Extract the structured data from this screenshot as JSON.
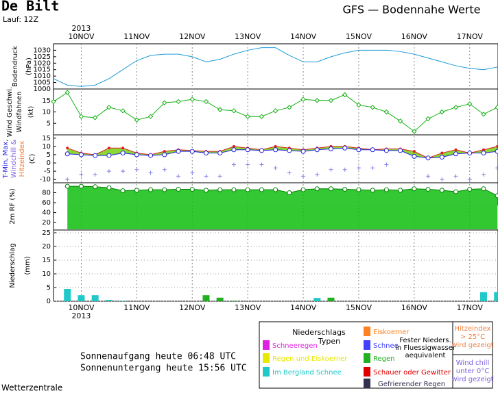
{
  "header": {
    "station": "De Bilt",
    "run": "Lauf: 12Z",
    "title": "GFS — Bodennahe Werte"
  },
  "footer": {
    "source": "Wetterzentrale",
    "sunrise": "Sonnenaufgang heute 06:48 UTC",
    "sunset": "Sonnenuntergang heute 15:56 UTC"
  },
  "legend": {
    "title": [
      "Niederschlags",
      "Typen"
    ],
    "items": [
      {
        "label": "Schneeregen",
        "color": "#e020e0"
      },
      {
        "label": "Regen und Eiskoerner",
        "color": "#e8e800"
      },
      {
        "label": "Eiskoerner",
        "color": "#ff8020"
      },
      {
        "label": "Schnee",
        "color": "#4040ff"
      },
      {
        "label": "Schauer oder Gewitter",
        "color": "#e00000"
      },
      {
        "label": "Gefrierender Regen",
        "color": "#303050"
      }
    ],
    "note": [
      "Fester Nieders.",
      "in Fluessigwasser",
      "aequivalent"
    ],
    "heat": [
      "Hitzeindex",
      "> 25°C",
      "wird gezeigt"
    ],
    "chill": [
      "Wind chill",
      "unter 0°C",
      "wird gezeigt"
    ]
  },
  "chart_data": [
    {
      "type": "line",
      "ylabel": [
        "Bodendruck",
        "(hPa)"
      ],
      "year": "2013",
      "categories": [
        null,
        null,
        "10NOV",
        null,
        null,
        null,
        "11NOV",
        null,
        null,
        null,
        "12NOV",
        null,
        null,
        null,
        "13NOV",
        null,
        null,
        null,
        "14NOV",
        null,
        null,
        null,
        "15NOV",
        null,
        null,
        null,
        "16NOV",
        null,
        null,
        null,
        "17NOV",
        null,
        null
      ],
      "series": [
        {
          "color": "#1a9ad6",
          "marker": "none",
          "values": [
            1008,
            1003,
            1002,
            1003,
            1008,
            1015,
            1022,
            1026,
            1027,
            1027,
            1025,
            1021,
            1023,
            1027,
            1030,
            1032,
            1032,
            1026,
            1021,
            1021,
            1025,
            1028,
            1030,
            1030,
            1030,
            1029,
            1027,
            1024,
            1021,
            1018,
            1016,
            1015,
            1017
          ]
        }
      ],
      "ylim": [
        1000,
        1035
      ],
      "yticks": [
        1000,
        1005,
        1010,
        1015,
        1020,
        1025,
        1030
      ],
      "grid": false
    },
    {
      "type": "line",
      "ylabel": [
        "Wind Geschwi.",
        "Windfahnen",
        "(kt)"
      ],
      "series": [
        {
          "color": "#10b010",
          "marker": "diamond",
          "values": [
            14.5,
            18.5,
            8,
            7.5,
            12,
            10.5,
            6.5,
            8,
            14,
            14.5,
            15.5,
            14.5,
            11,
            10.5,
            8,
            8,
            10.5,
            12,
            15.5,
            15,
            15,
            17.5,
            13,
            12,
            10,
            6,
            1.5,
            7,
            10,
            12,
            13.5,
            9,
            12
          ]
        }
      ],
      "ylim": [
        0,
        20
      ],
      "yticks": [
        5,
        10,
        15
      ],
      "grid": false
    },
    {
      "type": "line",
      "fill_between": "#7ed321",
      "ylabel": [
        {
          "text": "T-Min, Max,",
          "color": "#2020e0"
        },
        {
          "text": "Windchill &",
          "color": "#8060e0"
        },
        {
          "text": "Hitzeindex",
          "color": "#f08040"
        },
        {
          "text": "(C)",
          "color": "#000000"
        }
      ],
      "series": [
        {
          "color": "#e02020",
          "marker": "dot",
          "values": [
            null,
            9,
            6,
            5,
            9,
            9,
            6,
            5,
            7,
            8,
            7.5,
            7,
            7,
            10,
            9,
            8,
            10,
            9,
            8,
            9,
            10,
            10,
            9,
            8,
            8.5,
            8.5,
            7,
            3,
            6,
            8,
            6,
            8,
            10
          ]
        },
        {
          "color": "#2020e0",
          "marker": "circle",
          "values": [
            null,
            5.5,
            5,
            4.5,
            4.5,
            6,
            5,
            4.5,
            5,
            7,
            7,
            6,
            6,
            8,
            8,
            7.5,
            8,
            7.5,
            7,
            8,
            8.5,
            9,
            8,
            8,
            7.5,
            7.5,
            4,
            3,
            3.5,
            5.5,
            6,
            6,
            7
          ]
        },
        {
          "color": "#8080e8",
          "marker": "plus",
          "line": false,
          "values": [
            null,
            -10,
            -7,
            -7,
            -5,
            -5,
            -4,
            -6,
            -4,
            -8,
            -6,
            -8,
            -8,
            -1,
            -1,
            -1,
            -3,
            -6,
            -8,
            -7,
            -4,
            -4,
            -3,
            -3,
            -1,
            null,
            null,
            -8,
            -10,
            -8,
            -10,
            -7,
            -3
          ]
        }
      ],
      "ylim": [
        -12,
        17
      ],
      "yticks": [
        -10,
        -5,
        0,
        5,
        10,
        15
      ],
      "grid": false
    },
    {
      "type": "area",
      "ylabel": [
        "2m RF (%)"
      ],
      "series": [
        {
          "color": "#10c010",
          "marker": "circle",
          "values": [
            null,
            93,
            93,
            92,
            90,
            84,
            85,
            86,
            86,
            87,
            87,
            85,
            86,
            86,
            86,
            86,
            86,
            80,
            86,
            88,
            88,
            87,
            86,
            85,
            86,
            85,
            88,
            87,
            85,
            82,
            87,
            88,
            74
          ]
        }
      ],
      "ylim": [
        5,
        100
      ],
      "yticks": [
        20,
        40,
        60,
        80
      ],
      "grid": false
    },
    {
      "type": "bar",
      "ylabel": [
        "Niederschlag",
        "(mm)"
      ],
      "year": "2013",
      "categories": [
        null,
        null,
        "10NOV",
        null,
        null,
        null,
        "11NOV",
        null,
        null,
        null,
        "12NOV",
        null,
        null,
        null,
        "13NOV",
        null,
        null,
        null,
        "14NOV",
        null,
        null,
        null,
        "15NOV",
        null,
        null,
        null,
        "16NOV",
        null,
        null,
        null,
        "17NOV",
        null,
        null
      ],
      "series": [
        {
          "name": "Im Bergland Schnee",
          "color": "#20c8c8",
          "values": [
            null,
            4.5,
            2.2,
            2.2,
            0.5,
            0.2,
            null,
            null,
            null,
            null,
            null,
            null,
            null,
            null,
            null,
            null,
            null,
            null,
            null,
            1.2,
            null,
            null,
            null,
            null,
            null,
            null,
            null,
            null,
            null,
            null,
            null,
            3.3,
            3.3
          ]
        },
        {
          "name": "Regen",
          "color": "#20b020",
          "values": [
            null,
            null,
            null,
            null,
            null,
            null,
            null,
            null,
            null,
            null,
            null,
            2.2,
            1.3,
            0.2,
            null,
            null,
            null,
            null,
            null,
            null,
            1.3,
            null,
            null,
            null,
            null,
            null,
            null,
            null,
            null,
            null,
            null,
            null,
            null
          ]
        }
      ],
      "ylim": [
        0,
        26
      ],
      "yticks": [
        0,
        5,
        10,
        15,
        20,
        25
      ],
      "grid": true
    }
  ]
}
